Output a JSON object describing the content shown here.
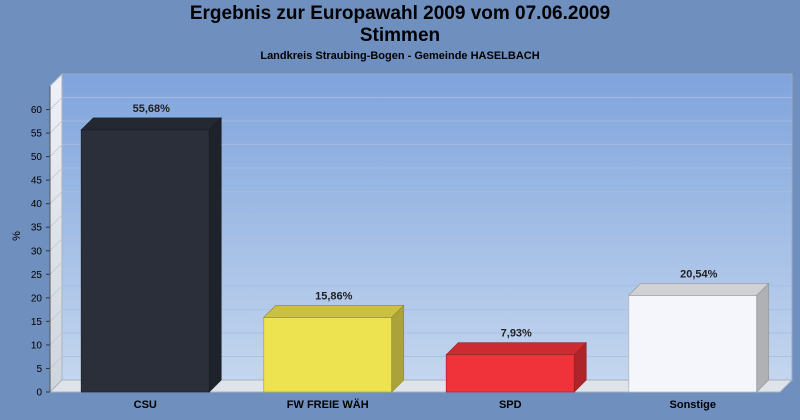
{
  "chart_data": {
    "type": "bar",
    "title_line1": "Ergebnis zur Europawahl 2009 vom 07.06.2009",
    "title_line2": "Stimmen",
    "subtitle": "Landkreis Straubing-Bogen - Gemeinde HASELBACH",
    "ylabel": "%",
    "ylim": [
      0,
      65
    ],
    "yticks": [
      0,
      5,
      10,
      15,
      20,
      25,
      30,
      35,
      40,
      45,
      50,
      55,
      60
    ],
    "categories": [
      "CSU",
      "FW FREIE WÄH",
      "SPD",
      "Sonstige"
    ],
    "values": [
      55.68,
      15.86,
      7.93,
      20.54
    ],
    "value_labels": [
      "55,68%",
      "15,86%",
      "7,93%",
      "20,54%"
    ],
    "colors": [
      "#2a2f3a",
      "#ede250",
      "#f0333a",
      "#f4f6fb"
    ],
    "grid": true
  }
}
